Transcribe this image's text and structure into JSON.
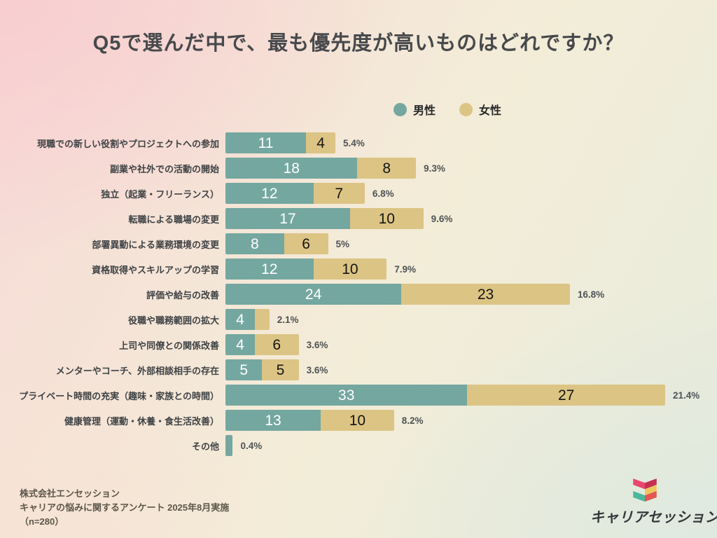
{
  "chart_data": {
    "type": "bar",
    "orientation": "horizontal",
    "stacked": true,
    "title": "Q5で選んだ中で、最も優先度が高いものはどれですか？",
    "categories": [
      "現職での新しい役割やプロジェクトへの参加",
      "副業や社外での活動の開始",
      "独立（起業・フリーランス）",
      "転職による職場の変更",
      "部署異動による業務環境の変更",
      "資格取得やスキルアップの学習",
      "評価や給与の改善",
      "役職や職務範囲の拡大",
      "上司や同僚との関係改善",
      "メンターやコーチ、外部相談相手の存在",
      "プライベート時間の充実（趣味・家族との時間）",
      "健康管理（運動・休養・食生活改善）",
      "その他"
    ],
    "series": [
      {
        "name": "男性",
        "color": "#74a7a0",
        "values": [
          11,
          18,
          12,
          17,
          8,
          12,
          24,
          4,
          4,
          5,
          33,
          13,
          1
        ]
      },
      {
        "name": "女性",
        "color": "#dcc484",
        "values": [
          4,
          8,
          7,
          10,
          6,
          10,
          23,
          2,
          6,
          5,
          27,
          10,
          0
        ]
      }
    ],
    "total_percent_labels": [
      "5.4%",
      "9.3%",
      "6.8%",
      "9.6%",
      "5%",
      "7.9%",
      "16.8%",
      "2.1%",
      "3.6%",
      "3.6%",
      "21.4%",
      "8.2%",
      "0.4%"
    ],
    "x_max": 60,
    "value_label_min": 4,
    "legend_position": "top-right",
    "grid": false
  },
  "footer": {
    "lines": [
      "株式会社エンセッション",
      "キャリアの悩みに関するアンケート 2025年8月実施",
      "（n=280）"
    ]
  },
  "logo": {
    "text": "キャリアセッション",
    "icon_colors": {
      "pink": "#e8486d",
      "dark_red": "#c53053",
      "yellow": "#efc75d",
      "teal": "#4db79d",
      "red": "#e25752"
    }
  }
}
